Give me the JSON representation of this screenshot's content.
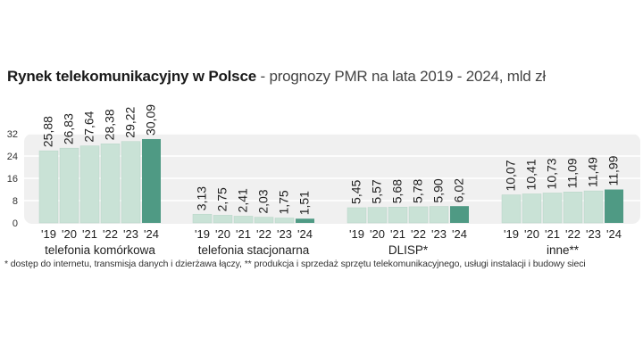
{
  "chart_data": {
    "type": "bar",
    "title": "Rynek telekomunikacyjny w Polsce",
    "subtitle": " - prognozy PMR na lata 2019 - 2024, mld zł",
    "yticks": [
      "0",
      "8",
      "16",
      "24",
      "32"
    ],
    "ylim": [
      0,
      32
    ],
    "grid": true,
    "categories": [
      "'19",
      "'20",
      "'21",
      "'22",
      "'23",
      "'24"
    ],
    "groups": [
      {
        "name": "telefonia komórkowa",
        "values": [
          25.88,
          26.83,
          27.64,
          28.38,
          29.22,
          30.09
        ],
        "labels": [
          "25,88",
          "26,83",
          "27,64",
          "28,38",
          "29,22",
          "30,09"
        ]
      },
      {
        "name": "telefonia stacjonarna",
        "values": [
          3.13,
          2.75,
          2.41,
          2.03,
          1.75,
          1.51
        ],
        "labels": [
          "3,13",
          "2,75",
          "2,41",
          "2,03",
          "1,75",
          "1,51"
        ]
      },
      {
        "name": "DLISP*",
        "values": [
          5.45,
          5.57,
          5.68,
          5.78,
          5.9,
          6.02
        ],
        "labels": [
          "5,45",
          "5,57",
          "5,68",
          "5,78",
          "5,90",
          "6,02"
        ]
      },
      {
        "name": "inne**",
        "values": [
          10.07,
          10.41,
          10.73,
          11.09,
          11.49,
          11.99
        ],
        "labels": [
          "10,07",
          "10,41",
          "10,73",
          "11,09",
          "11,49",
          "11,99"
        ]
      }
    ],
    "colors": {
      "bar": "#c9e2d6",
      "highlight": "#4f9a84",
      "panel": "#f0f0f0",
      "grid": "#ffffff"
    },
    "footnote": "* dostęp do internetu, transmisja danych i dzierżawa łączy, ** produkcja i sprzedaż sprzętu telekomunikacyjnego, usługi instalacji i budowy sieci"
  }
}
